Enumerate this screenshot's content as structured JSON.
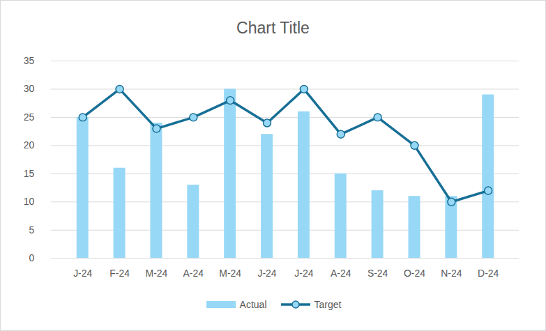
{
  "chart_data": {
    "type": "bar",
    "title": "Chart Title",
    "categories": [
      "J-24",
      "F-24",
      "M-24",
      "A-24",
      "M-24",
      "J-24",
      "J-24",
      "A-24",
      "S-24",
      "O-24",
      "N-24",
      "D-24"
    ],
    "series": [
      {
        "name": "Actual",
        "type": "bar",
        "color": "#97d8f6",
        "values": [
          25,
          16,
          24,
          13,
          30,
          22,
          26,
          15,
          12,
          11,
          11,
          29
        ]
      },
      {
        "name": "Target",
        "type": "line",
        "color": "#176f96",
        "marker": "circle",
        "values": [
          25,
          30,
          23,
          25,
          28,
          24,
          30,
          22,
          25,
          20,
          10,
          12
        ]
      }
    ],
    "ylim": [
      0,
      35
    ],
    "yticks": [
      0,
      5,
      10,
      15,
      20,
      25,
      30,
      35
    ],
    "grid": true,
    "legend": "bottom"
  }
}
